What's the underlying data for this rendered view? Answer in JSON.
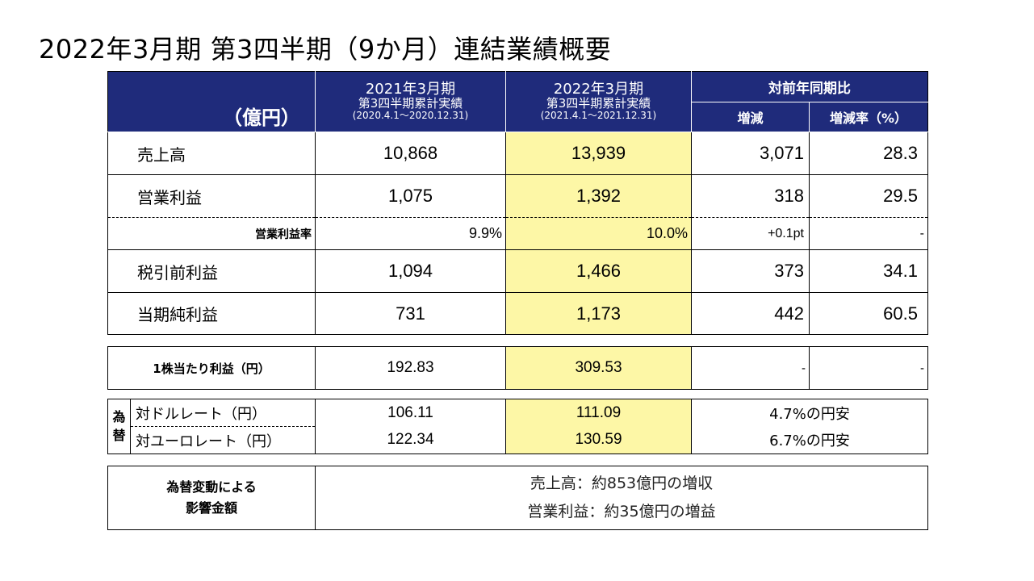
{
  "title": "2022年3月期 第3四半期（9か月）連結業績概要",
  "header": {
    "unit": "（億円）",
    "prev": {
      "line1": "2021年3月期",
      "line2": "第3四半期累計実績",
      "line3": "(2020.4.1～2020.12.31)"
    },
    "curr": {
      "line1": "2022年3月期",
      "line2": "第3四半期累計実績",
      "line3": "(2021.4.1～2021.12.31)"
    },
    "compare": "対前年同期比",
    "change": "増減",
    "change_rate": "増減率（%）"
  },
  "rows": [
    {
      "label": "売上高",
      "prev": "10,868",
      "curr": "13,939",
      "change": "3,071",
      "rate": "28.3"
    },
    {
      "label": "営業利益",
      "prev": "1,075",
      "curr": "1,392",
      "change": "318",
      "rate": "29.5"
    },
    {
      "label": "営業利益率",
      "prev": "9.9%",
      "curr": "10.0%",
      "change": "+0.1pt",
      "rate": "-"
    },
    {
      "label": "税引前利益",
      "prev": "1,094",
      "curr": "1,466",
      "change": "373",
      "rate": "34.1"
    },
    {
      "label": "当期純利益",
      "prev": "731",
      "curr": "1,173",
      "change": "442",
      "rate": "60.5"
    }
  ],
  "eps": {
    "label": "1株当たり利益（円）",
    "prev": "192.83",
    "curr": "309.53",
    "change": "-",
    "rate": "-"
  },
  "fx": {
    "side1": "為",
    "side2": "替",
    "usd": {
      "label": "対ドルレート（円）",
      "prev": "106.11",
      "curr": "111.09",
      "note": "4.7%の円安"
    },
    "eur": {
      "label": "対ユーロレート（円）",
      "prev": "122.34",
      "curr": "130.59",
      "note": "6.7%の円安"
    }
  },
  "impact": {
    "label1": "為替変動による",
    "label2": "影響金額",
    "line1": "売上高：約853億円の増収",
    "line2": "営業利益：約35億円の増益"
  }
}
